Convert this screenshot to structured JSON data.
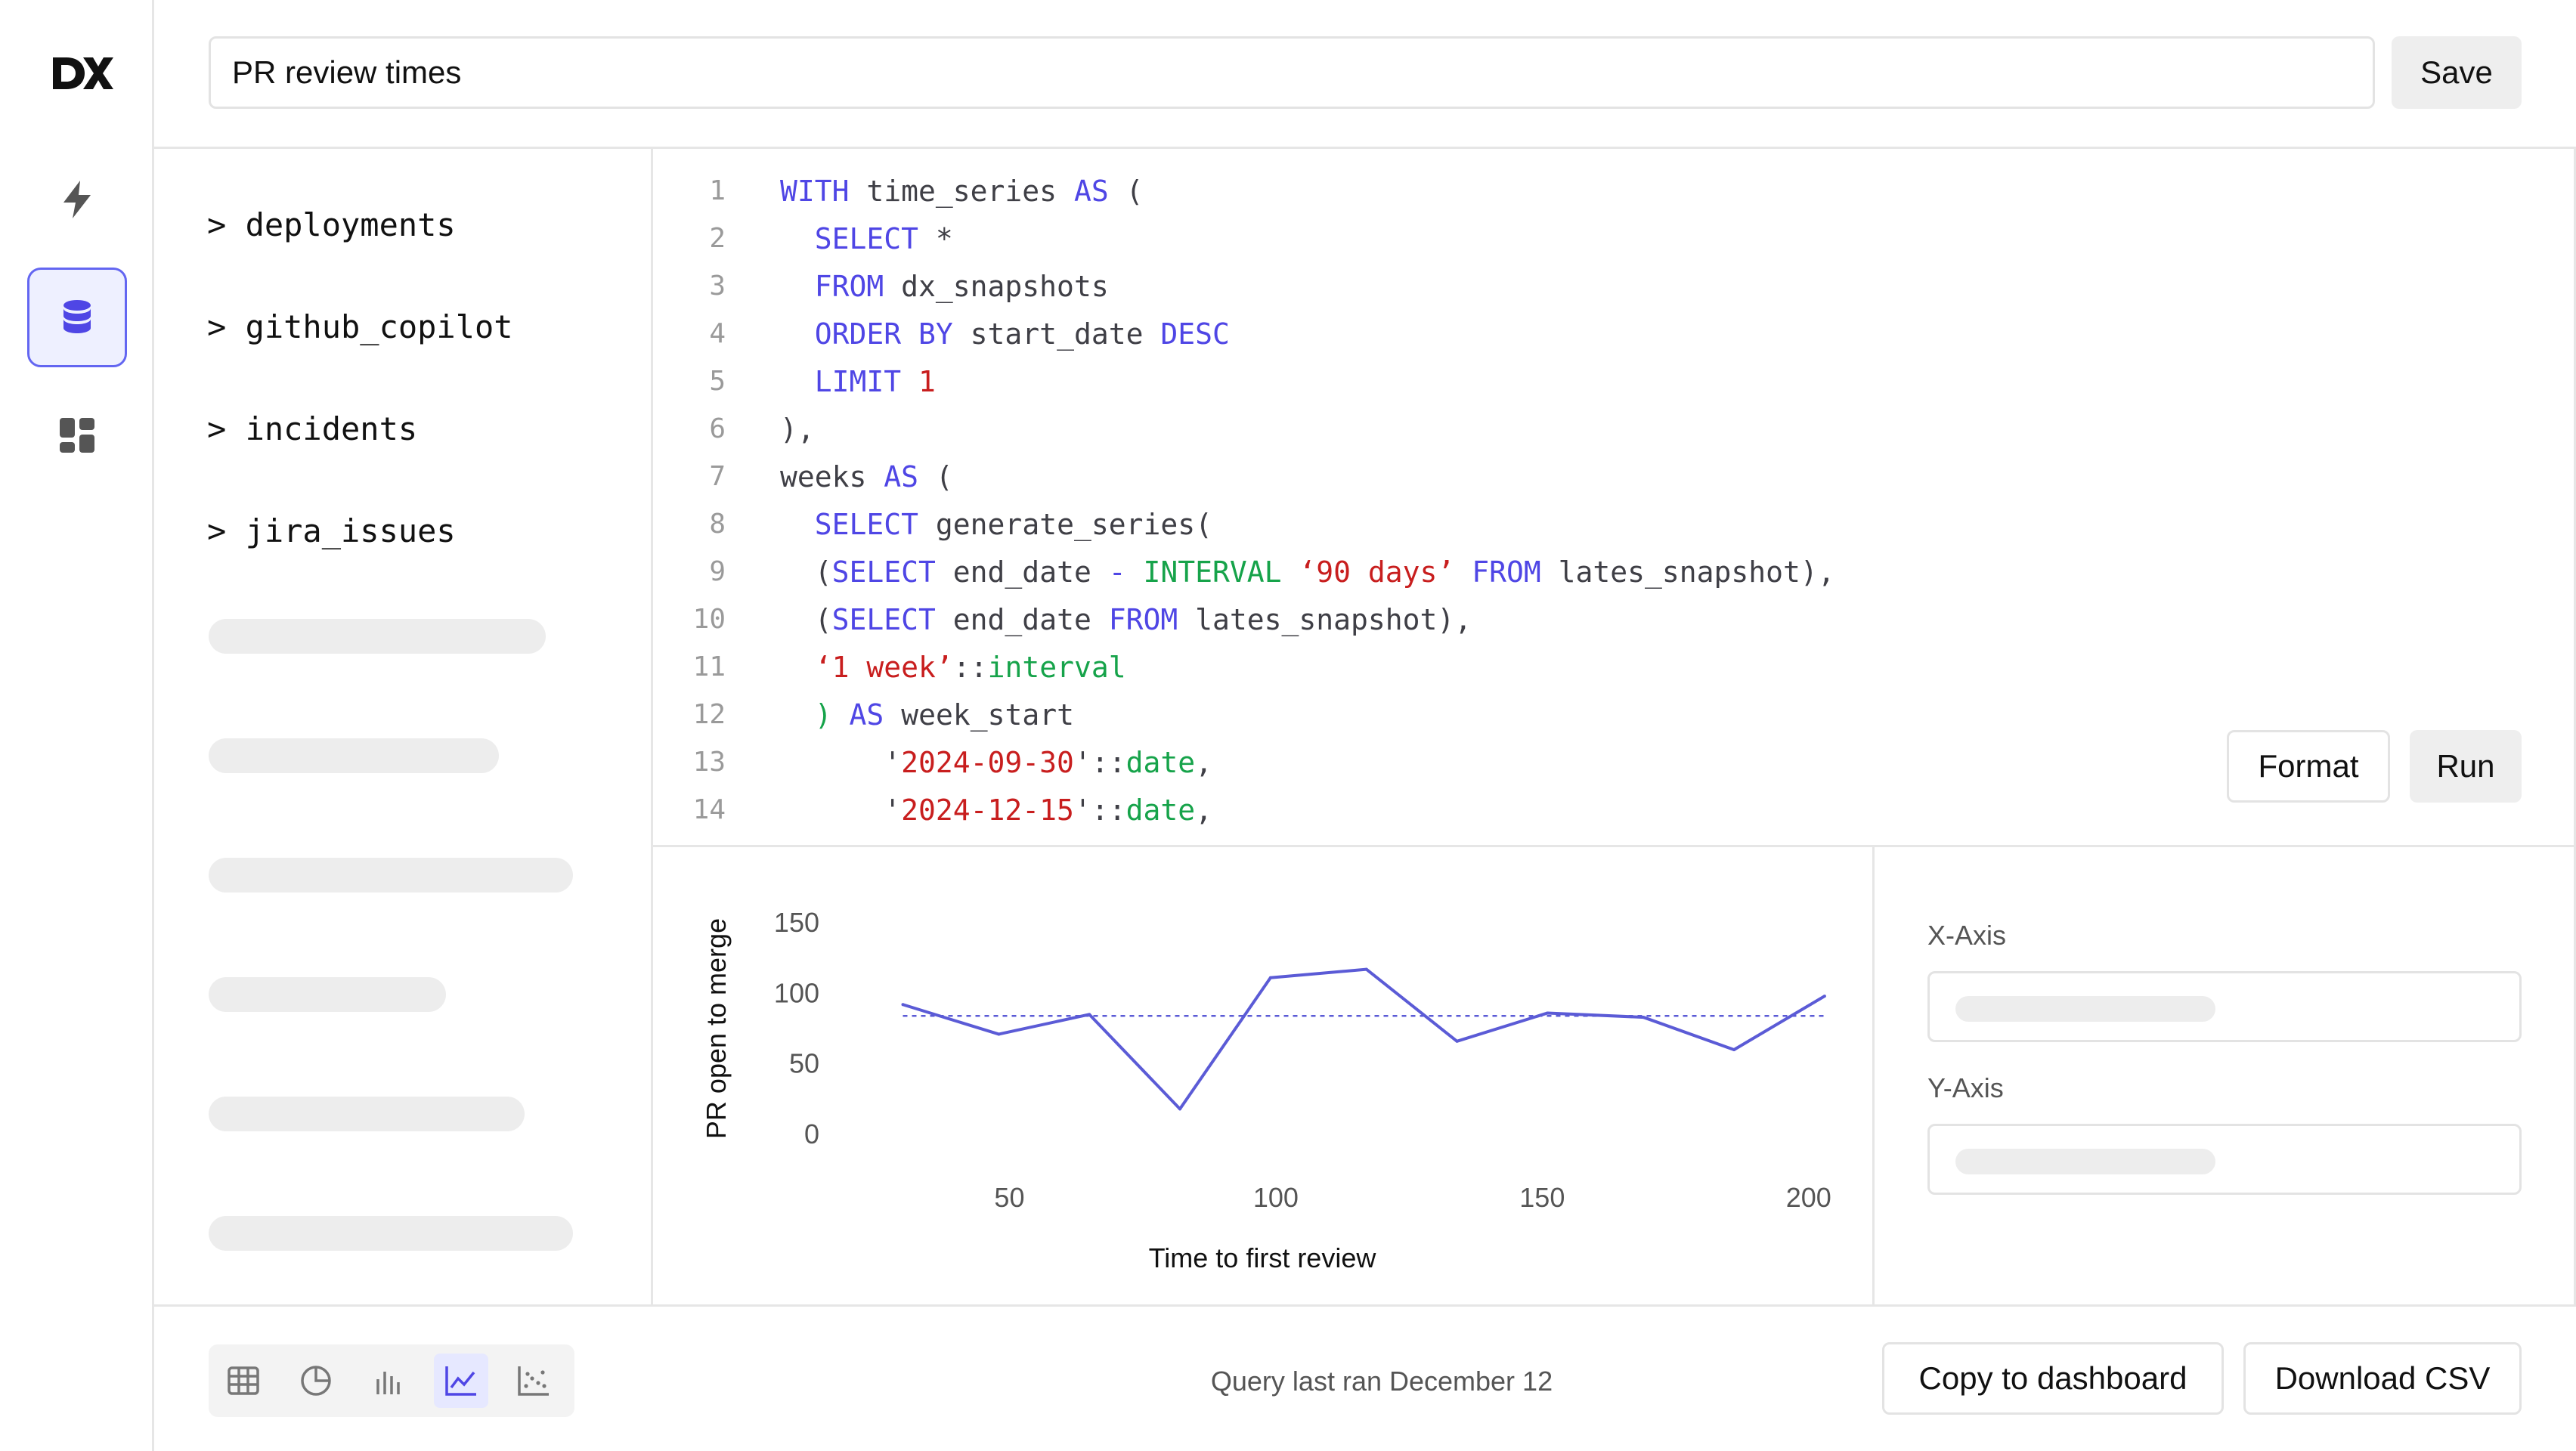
{
  "app": {
    "logo_text": "DX",
    "accent_color": "#4f46e5"
  },
  "nav": {
    "items": [
      {
        "icon": "lightning-icon",
        "active": false
      },
      {
        "icon": "database-icon",
        "active": true
      },
      {
        "icon": "dashboard-grid-icon",
        "active": false
      }
    ]
  },
  "header": {
    "query_title": "PR review times",
    "save_label": "Save"
  },
  "schema": {
    "tables": [
      "> deployments",
      "> github_copilot",
      "> incidents",
      "> jira_issues"
    ]
  },
  "editor": {
    "line_numbers": [
      "1",
      "2",
      "3",
      "4",
      "5",
      "6",
      "7",
      "8",
      "9",
      "10",
      "11",
      "12",
      "13",
      "14"
    ],
    "format_label": "Format",
    "run_label": "Run"
  },
  "chart_data": {
    "type": "line",
    "xlabel": "Time to first review",
    "ylabel": "PR open to merge",
    "x_ticks": [
      50,
      100,
      150,
      200
    ],
    "y_ticks": [
      0,
      50,
      100,
      150
    ],
    "xlim": [
      20,
      205
    ],
    "ylim": [
      0,
      150
    ],
    "x": [
      30,
      48,
      65,
      82,
      99,
      117,
      134,
      151,
      169,
      186,
      203
    ],
    "values": [
      92,
      71,
      85,
      18,
      111,
      117,
      66,
      86,
      83,
      60,
      98
    ],
    "reference_line": 84,
    "series_color": "#5b5bd6"
  },
  "axis_config": {
    "x_label": "X-Axis",
    "y_label": "Y-Axis"
  },
  "footer": {
    "viz_types": [
      "table-icon",
      "pie-chart-icon",
      "bar-chart-icon",
      "line-chart-icon",
      "scatter-chart-icon"
    ],
    "active_viz": "line-chart-icon",
    "last_ran": "Query last ran December 12",
    "copy_label": "Copy to dashboard",
    "download_label": "Download CSV"
  }
}
